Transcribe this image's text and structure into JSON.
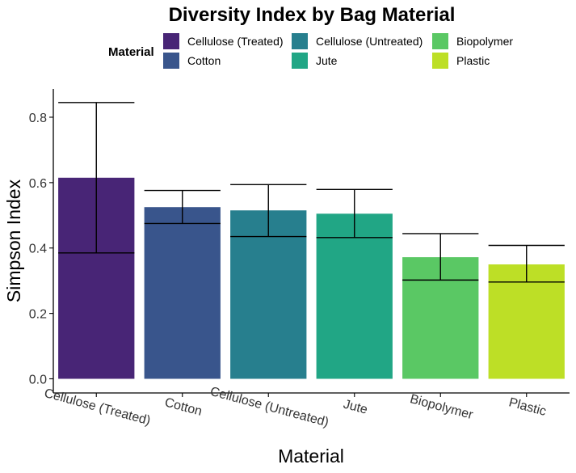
{
  "chart_data": {
    "type": "bar",
    "title": "Diversity Index by Bag Material",
    "xlabel": "Material",
    "ylabel": "Simpson Index",
    "ylim": [
      0,
      0.88
    ],
    "yticks": [
      "0.0",
      "0.2",
      "0.4",
      "0.6",
      "0.8"
    ],
    "ytick_values": [
      0,
      0.2,
      0.4,
      0.6,
      0.8
    ],
    "categories": [
      "Cellulose (Treated)",
      "Cotton",
      "Cellulose (Untreated)",
      "Jute",
      "Biopolymer",
      "Plastic"
    ],
    "values": [
      0.615,
      0.525,
      0.515,
      0.505,
      0.372,
      0.35
    ],
    "error_low": [
      0.385,
      0.475,
      0.435,
      0.432,
      0.302,
      0.296
    ],
    "error_high": [
      0.845,
      0.576,
      0.594,
      0.579,
      0.444,
      0.408
    ],
    "colors": [
      "#482576",
      "#39558c",
      "#277f8e",
      "#21a685",
      "#5ac864",
      "#bddf26"
    ],
    "legend": {
      "title": "Material",
      "placement": "top",
      "entries": [
        "Cellulose (Treated)",
        "Cellulose (Untreated)",
        "Biopolymer",
        "Cotton",
        "Jute",
        "Plastic"
      ],
      "entry_colors": [
        "#482576",
        "#277f8e",
        "#5ac864",
        "#39558c",
        "#21a685",
        "#bddf26"
      ]
    },
    "grid": false
  }
}
